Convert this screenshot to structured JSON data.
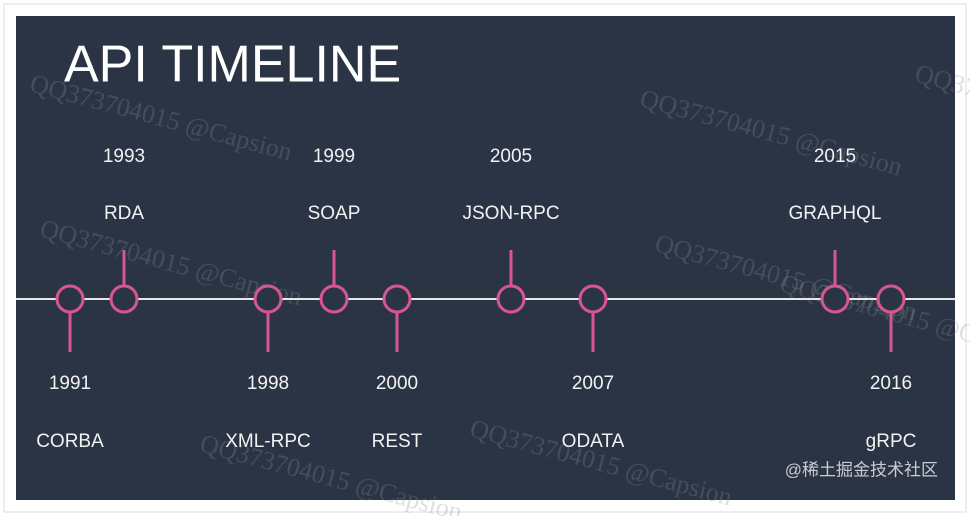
{
  "title": "API TIMELINE",
  "events": [
    {
      "year": "1991",
      "name": "CORBA"
    },
    {
      "year": "1993",
      "name": "RDA"
    },
    {
      "year": "1998",
      "name": "XML-RPC"
    },
    {
      "year": "1999",
      "name": "SOAP"
    },
    {
      "year": "2000",
      "name": "REST"
    },
    {
      "year": "2005",
      "name": "JSON-RPC"
    },
    {
      "year": "2007",
      "name": "ODATA"
    },
    {
      "year": "2015",
      "name": "GRAPHQL"
    },
    {
      "year": "2016",
      "name": "gRPC"
    }
  ],
  "watermark": "QQ373704015 @Capsion",
  "credit": "@稀土掘金技术社区"
}
